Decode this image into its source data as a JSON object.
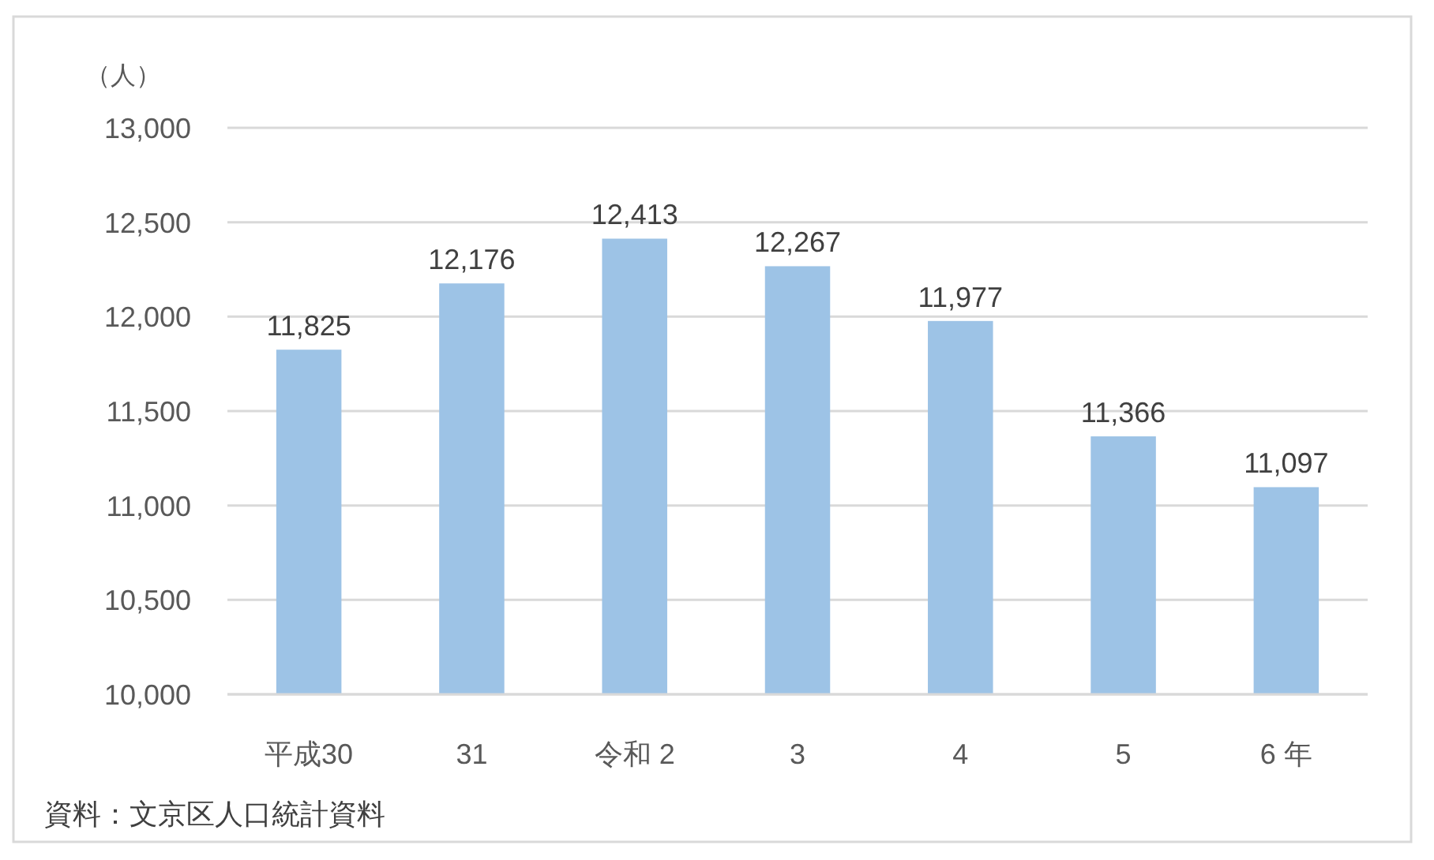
{
  "chart_data": {
    "type": "bar",
    "ylabel": "（人）",
    "categories": [
      "平成30",
      "31",
      "令和 2",
      "3",
      "4",
      "5",
      "6 年"
    ],
    "values": [
      11825,
      12176,
      12413,
      12267,
      11977,
      11366,
      11097
    ],
    "value_labels": [
      "11,825",
      "12,176",
      "12,413",
      "12,267",
      "11,977",
      "11,366",
      "11,097"
    ],
    "color": "#9dc3e6",
    "ylim": [
      10000,
      13000
    ],
    "yticks": [
      {
        "value": 10000,
        "label": "10,000"
      },
      {
        "value": 10500,
        "label": "10,500"
      },
      {
        "value": 11000,
        "label": "11,000"
      },
      {
        "value": 11500,
        "label": "11,500"
      },
      {
        "value": 12000,
        "label": "12,000"
      },
      {
        "value": 12500,
        "label": "12,500"
      },
      {
        "value": 13000,
        "label": "13,000"
      }
    ],
    "grid": "y",
    "annotations": [
      "資料：文京区人口統計資料"
    ]
  }
}
